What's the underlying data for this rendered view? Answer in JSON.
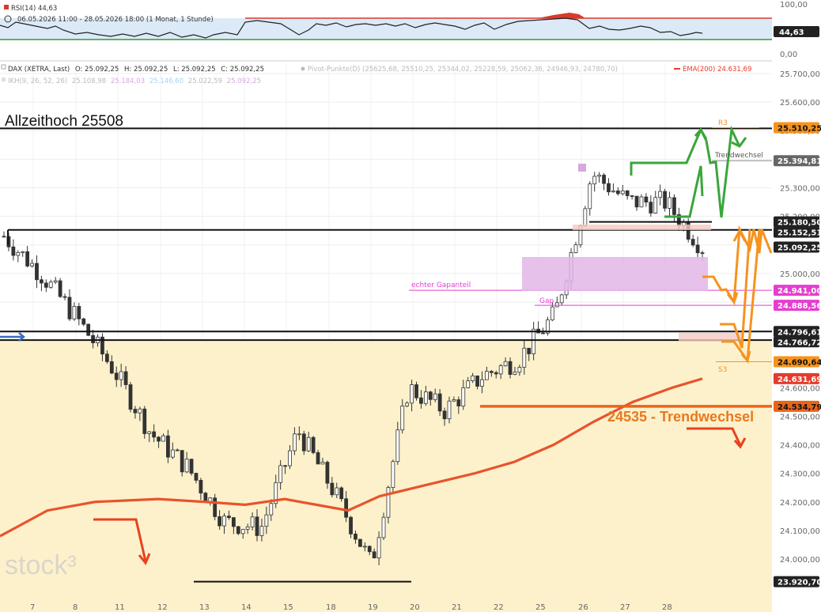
{
  "rsi_panel": {
    "title": "RSI(14)",
    "value": "44,63",
    "date_range": "06.05.2026 11:00 - 28.05.2026 18:00",
    "period": "(1 Monat, 1 Stunde)",
    "axis_labels": [
      "100,00",
      "0,00"
    ],
    "upper_line_color": "#d93a2b",
    "lower_line_color": "#2e9b2e",
    "band_color": "#dceaf7"
  },
  "header": {
    "instrument": "DAX (XETRA, Last)",
    "open": "O: 25.092,25",
    "high": "H: 25.092,25",
    "low": "L: 25.092,25",
    "close": "C: 25.092,25",
    "pivot": "Pivot-Punkte(D) (25625,68, 25510,25, 25344,02, 25228,59, 25062,36, 24946,93, 24780,70)",
    "ema": "EMA(200)",
    "ema_value": "24.631,69",
    "ikh": "IKH(9, 26, 52, 26)",
    "ikh_values": [
      "25.108,98",
      "25.184,03",
      "25.146,60",
      "25.022,59",
      "25.092,25"
    ]
  },
  "annotations": {
    "ath": "Allzeithoch 25508",
    "trend_change": "24535 - Trendwechsel",
    "trendwechsel_small": "Trendwechsel",
    "r3": "R3",
    "s3": "S3",
    "gap": "Gap",
    "true_gap": "echter Gapanteil",
    "logo": "stock³"
  },
  "colors": {
    "zone_fill": "#fdf1cc",
    "ema_line": "#e8542c",
    "up_candle": "#ffffff",
    "down_candle": "#333333",
    "green_path": "#3aa63a",
    "orange_path": "#f5931e",
    "gap_fill": "#e2b6e6",
    "gap_line": "#e53ecf",
    "support_line": "#e8651a"
  },
  "price_axis": {
    "ticks": [
      "25.700,00",
      "25.600,00",
      "25.500,00",
      "25.400,00",
      "25.300,00",
      "25.200,00",
      "25.100,00",
      "25.000,00",
      "24.900,00",
      "24.800,00",
      "24.700,00",
      "24.600,00",
      "24.500,00",
      "24.400,00",
      "24.300,00",
      "24.200,00",
      "24.100,00",
      "24.000,00"
    ]
  },
  "price_tags": [
    {
      "label": "25.510,25",
      "price": 25510.25,
      "bg": "#f5931e",
      "fg": "#111111"
    },
    {
      "label": "25.394,81",
      "price": 25394.81,
      "bg": "#666666",
      "fg": "#ffffff"
    },
    {
      "label": "25.180,50",
      "price": 25180.5,
      "bg": "#222222",
      "fg": "#ffffff"
    },
    {
      "label": "25.152,51",
      "price": 25152.51,
      "bg": "#222222",
      "fg": "#ffffff"
    },
    {
      "label": "25.092,25",
      "price": 25092.25,
      "bg": "#222222",
      "fg": "#ffffff"
    },
    {
      "label": "24.941,00",
      "price": 24941.0,
      "bg": "#e53ecf",
      "fg": "#ffffff"
    },
    {
      "label": "24.888,56",
      "price": 24888.56,
      "bg": "#e53ecf",
      "fg": "#ffffff"
    },
    {
      "label": "24.796,61",
      "price": 24796.61,
      "bg": "#222222",
      "fg": "#ffffff"
    },
    {
      "label": "24.766,72",
      "price": 24766.72,
      "bg": "#222222",
      "fg": "#ffffff"
    },
    {
      "label": "24.690,64",
      "price": 24690.64,
      "bg": "#f5931e",
      "fg": "#111111"
    },
    {
      "label": "24.631,69",
      "price": 24631.69,
      "bg": "#e53c2c",
      "fg": "#ffffff"
    },
    {
      "label": "24.534,79",
      "price": 24534.79,
      "bg": "#e8651a",
      "fg": "#111111"
    },
    {
      "label": "23.920,70",
      "price": 23920.7,
      "bg": "#222222",
      "fg": "#ffffff"
    }
  ],
  "chart_data": {
    "type": "candlestick",
    "instrument": "DAX (XETRA, Last)",
    "interval": "1 Stunde",
    "x_tick_labels": [
      "7",
      "8",
      "11",
      "12",
      "13",
      "14",
      "15",
      "18",
      "19",
      "20",
      "21",
      "22",
      "25",
      "26",
      "27",
      "28"
    ],
    "ylim": [
      23900,
      25760
    ],
    "levels": [
      {
        "name": "Allzeithoch",
        "value": 25508
      },
      {
        "name": "R3",
        "value": 25510.25
      },
      {
        "name": "Trendwechsel",
        "value": 25394.81
      },
      {
        "name": "Support",
        "value": 25152.51
      },
      {
        "name": "Gap",
        "value": 24888.56
      },
      {
        "name": "echter Gapanteil",
        "value": 24941.0
      },
      {
        "name": "Support",
        "value": 24796.61
      },
      {
        "name": "Support",
        "value": 24766.72
      },
      {
        "name": "S3",
        "value": 24690.64
      },
      {
        "name": "EMA(200)",
        "value": 24631.69
      },
      {
        "name": "Trendwechsel",
        "value": 24534.79
      },
      {
        "name": "Tief",
        "value": 23920.7
      }
    ],
    "close_path": [
      [
        0.0,
        25130
      ],
      [
        1.0,
        25000
      ],
      [
        2.0,
        24840
      ],
      [
        3.0,
        24660
      ],
      [
        4.0,
        24440
      ],
      [
        5.0,
        24320
      ],
      [
        6.0,
        24130
      ],
      [
        7.0,
        24110
      ],
      [
        8.0,
        24450
      ],
      [
        9.0,
        24230
      ],
      [
        10.0,
        23980
      ],
      [
        11.0,
        24600
      ],
      [
        12.0,
        24520
      ],
      [
        13.0,
        24640
      ],
      [
        14.0,
        24700
      ],
      [
        15.0,
        24860
      ],
      [
        16.0,
        25350
      ],
      [
        17.0,
        25250
      ],
      [
        18.0,
        25250
      ],
      [
        19.0,
        25092
      ]
    ]
  }
}
